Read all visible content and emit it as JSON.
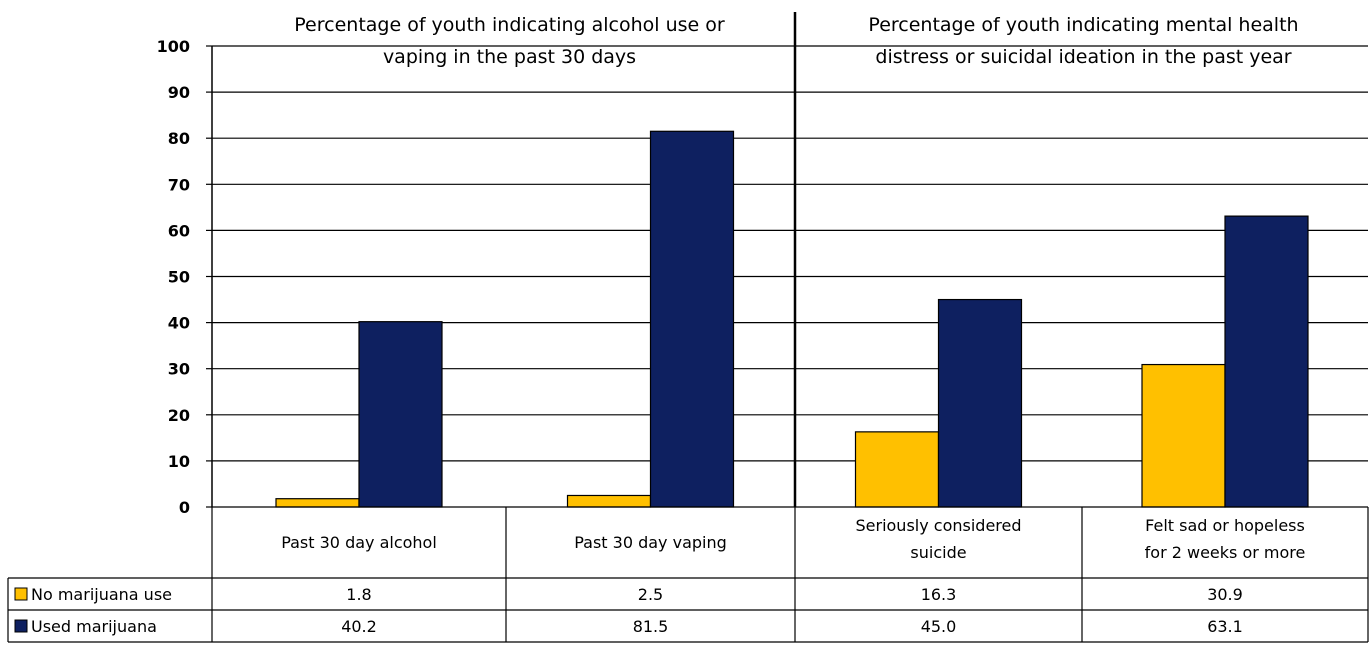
{
  "chart_data": {
    "type": "bar",
    "panels": [
      {
        "title_lines": [
          "Percentage of youth indicating alcohol use or",
          "vaping in the past 30 days"
        ],
        "category_indices": [
          0,
          1
        ]
      },
      {
        "title_lines": [
          "Percentage of youth indicating mental health",
          "distress or suicidal ideation in the past year"
        ],
        "category_indices": [
          2,
          3
        ]
      }
    ],
    "categories": [
      [
        "Past 30 day alcohol"
      ],
      [
        "Past 30 day vaping"
      ],
      [
        "Seriously considered",
        "suicide"
      ],
      [
        "Felt sad or hopeless",
        "for 2 weeks or more"
      ]
    ],
    "series": [
      {
        "name": "No marijuana use",
        "color": "#FFC000",
        "values": [
          1.8,
          2.5,
          16.3,
          30.9
        ],
        "labels": [
          "1.8",
          "2.5",
          "16.3",
          "30.9"
        ]
      },
      {
        "name": "Used marijuana",
        "color": "#0E2060",
        "values": [
          40.2,
          81.5,
          45.0,
          63.1
        ],
        "labels": [
          "40.2",
          "81.5",
          "45.0",
          "63.1"
        ]
      }
    ],
    "ylim": [
      0,
      100
    ],
    "yticks": [
      "0",
      "10",
      "20",
      "30",
      "40",
      "50",
      "60",
      "70",
      "80",
      "90",
      "100"
    ],
    "grid": true,
    "legend": "data-table",
    "xlabel": "",
    "ylabel": ""
  }
}
